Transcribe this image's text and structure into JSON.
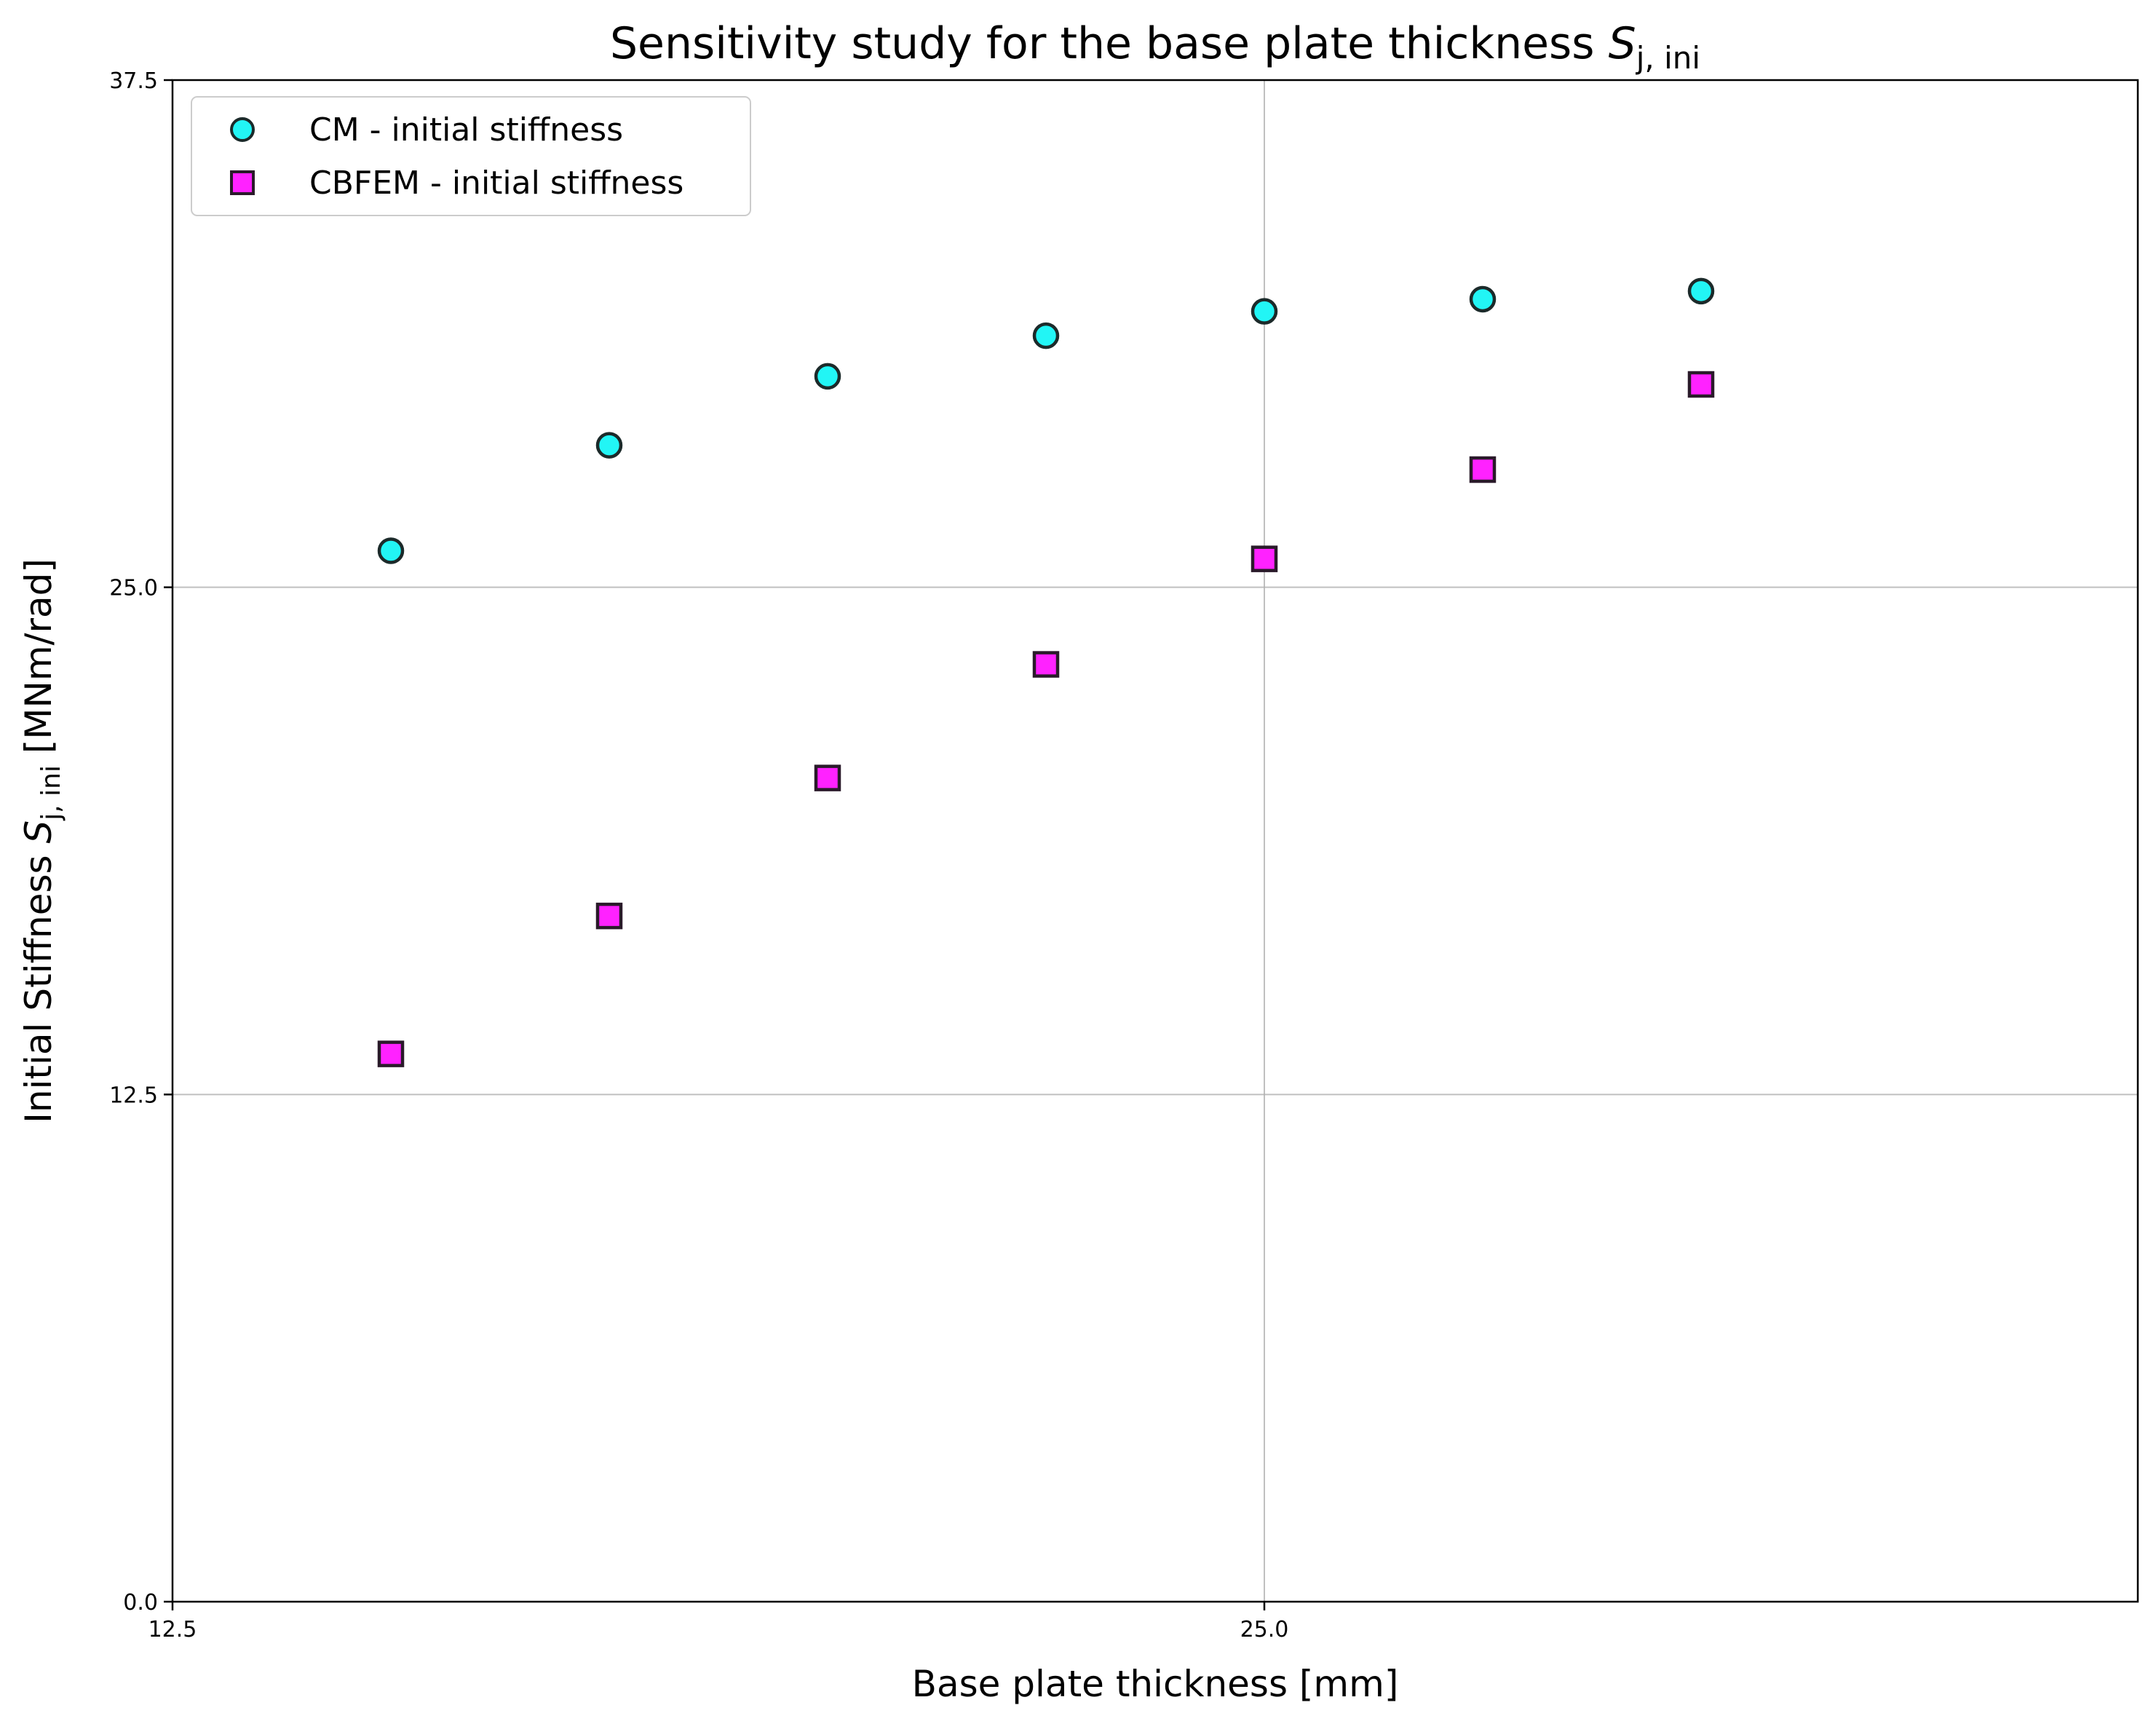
{
  "chart_data": {
    "type": "scatter",
    "title": {
      "main": "Sensitivity study for the base plate thickness",
      "symbol": "S",
      "subscript": "j, ini"
    },
    "xlabel": "Base plate thickness [mm]",
    "ylabel": {
      "prefix": "Initial Stiffness",
      "symbol": "S",
      "subscript": "j, ini",
      "suffix": "[MNm/rad]"
    },
    "xlim": [
      12.5,
      35
    ],
    "ylim": [
      0,
      37.5
    ],
    "xticks": [
      12.5,
      25.0
    ],
    "xtick_labels": [
      "12.5",
      "25.0"
    ],
    "yticks": [
      0,
      12.5,
      25.0,
      37.5
    ],
    "ytick_labels": [
      "0.0",
      "12.5",
      "25.0",
      "37.5"
    ],
    "grid": true,
    "legend_position": "top-left",
    "series": [
      {
        "name": "CM - initial stiffness",
        "marker": "circle",
        "color": "#22f5f5",
        "edge_color": "#1c2a2a",
        "x": [
          15,
          17.5,
          20,
          22.5,
          25,
          27.5,
          30
        ],
        "y": [
          25.9,
          28.5,
          30.2,
          31.2,
          31.8,
          32.1,
          32.3
        ]
      },
      {
        "name": "CBFEM - initial stiffness",
        "marker": "square",
        "color": "#ff22ff",
        "edge_color": "#2a1a2a",
        "x": [
          15,
          17.5,
          20,
          22.5,
          25,
          27.5,
          30
        ],
        "y": [
          13.5,
          16.9,
          20.3,
          23.1,
          25.7,
          27.9,
          30.0
        ]
      }
    ]
  }
}
